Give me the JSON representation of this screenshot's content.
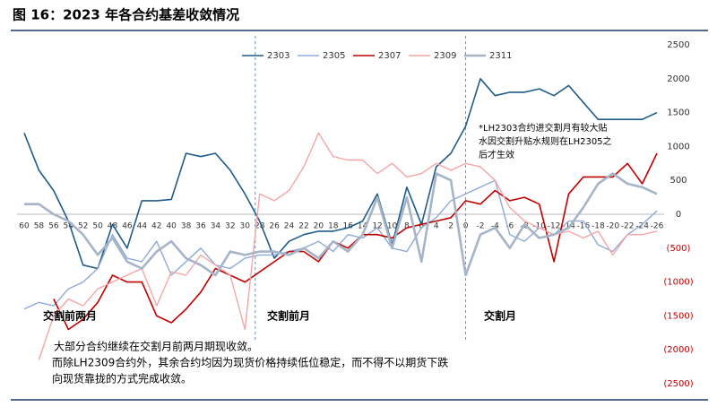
{
  "chart_data": {
    "type": "line",
    "title": "图 16：2023 年各合约基差收敛情况",
    "categories": [
      "60",
      "58",
      "56",
      "54",
      "52",
      "50",
      "48",
      "46",
      "44",
      "42",
      "40",
      "38",
      "36",
      "34",
      "32",
      "30",
      "28",
      "26",
      "24",
      "22",
      "20",
      "18",
      "16",
      "14",
      "12",
      "10",
      "8",
      "6",
      "4",
      "2",
      "0",
      "-2",
      "-4",
      "-6",
      "-8",
      "-10",
      "-12",
      "-14",
      "-16",
      "-18",
      "-20",
      "-22",
      "-24",
      "-26"
    ],
    "series": [
      {
        "name": "2303",
        "color": "#1f5c8b",
        "width": 1.6,
        "values": [
          1200,
          650,
          350,
          -100,
          -750,
          -800,
          -150,
          -500,
          200,
          200,
          220,
          900,
          850,
          900,
          650,
          300,
          -100,
          -650,
          -400,
          -300,
          -250,
          -250,
          -200,
          -100,
          300,
          -450,
          400,
          -150,
          700,
          900,
          1300,
          2000,
          1750,
          1800,
          1800,
          1850,
          1750,
          1900,
          1650,
          1400,
          1400,
          1400,
          1400,
          1500
        ]
      },
      {
        "name": "2305",
        "color": "#8eaad8",
        "width": 1.4,
        "values": [
          -1400,
          -1300,
          -1350,
          -1100,
          -1000,
          -800,
          -300,
          -650,
          -700,
          -400,
          -900,
          -700,
          -500,
          -750,
          -800,
          -650,
          -600,
          -600,
          -550,
          -500,
          -400,
          -550,
          -300,
          -350,
          -200,
          -500,
          -550,
          -200,
          -50,
          200,
          300,
          400,
          500,
          -300,
          -400,
          -200,
          -300,
          -100,
          -100,
          -450,
          -550,
          -300,
          -150,
          50
        ]
      },
      {
        "name": "2307",
        "color": "#c00000",
        "width": 1.6,
        "values": [
          null,
          null,
          -1250,
          -1700,
          -1550,
          -1300,
          -900,
          -1000,
          -1000,
          -1500,
          -1600,
          -1400,
          -1150,
          -800,
          -900,
          -1000,
          -850,
          -700,
          -550,
          -550,
          -700,
          -400,
          -500,
          -300,
          -300,
          -350,
          -200,
          -150,
          -100,
          -50,
          200,
          150,
          350,
          200,
          250,
          150,
          -700,
          300,
          550,
          550,
          550,
          750,
          450,
          900
        ]
      },
      {
        "name": "2309",
        "color": "#f4a6a6",
        "width": 1.4,
        "values": [
          null,
          -2150,
          -1500,
          -1250,
          -1350,
          -1100,
          -1000,
          -900,
          -800,
          -1350,
          -850,
          -900,
          -600,
          -750,
          -900,
          -1700,
          300,
          200,
          350,
          700,
          1200,
          850,
          800,
          800,
          600,
          750,
          550,
          600,
          750,
          650,
          750,
          700,
          500,
          100,
          -100,
          -200,
          -300,
          -250,
          -350,
          -250,
          -600,
          -300,
          -300,
          -250
        ]
      },
      {
        "name": "2311",
        "color": "#a6b4c8",
        "width": 2.6,
        "values": [
          150,
          150,
          0,
          -100,
          -300,
          -600,
          -350,
          -700,
          -800,
          -550,
          -400,
          -650,
          -750,
          -900,
          -550,
          -600,
          -550,
          -550,
          -600,
          -500,
          -650,
          -400,
          -550,
          -300,
          250,
          -500,
          250,
          -700,
          600,
          500,
          -900,
          -300,
          -200,
          -500,
          -150,
          -350,
          -300,
          -200,
          100,
          450,
          600,
          450,
          400,
          300
        ]
      }
    ],
    "ylim": [
      -2500,
      2500
    ],
    "yticks": [
      {
        "value": -2500,
        "label": "(2500)"
      },
      {
        "value": -2000,
        "label": "(2000)"
      },
      {
        "value": -1500,
        "label": "(1500)"
      },
      {
        "value": -1000,
        "label": "(1000)"
      },
      {
        "value": -500,
        "label": "(500)"
      },
      0,
      500,
      1000,
      1500,
      2000,
      2500
    ],
    "periods": [
      "交割前两月",
      "交割前月",
      "交割月"
    ],
    "annotation": [
      "*LH2303合约进交割月有较大贴",
      "水因交割升贴水规则在LH2305之",
      "后才生效"
    ],
    "note": [
      "大部分合约继续在交割月前两月期现收敛。",
      "而除LH2309合约外，其余合约均因为现货价格持续低位稳定，而不得不以期货下跌",
      "向现货靠拢的方式完成收敛。"
    ]
  }
}
